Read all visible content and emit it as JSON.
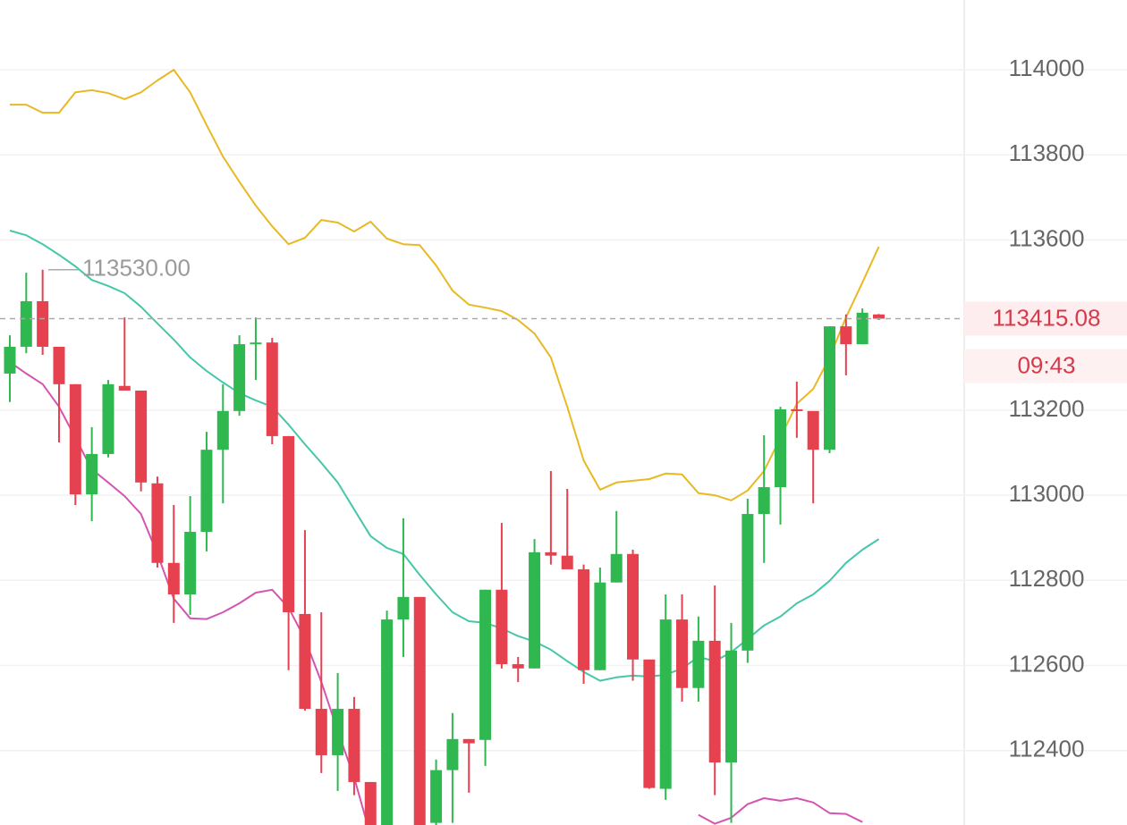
{
  "chart_data": {
    "type": "candlestick",
    "ylim": [
      112225,
      114164
    ],
    "yticks": [
      112400,
      112600,
      112800,
      113000,
      113200,
      113600,
      113800,
      114000
    ],
    "grid": true,
    "up_color": "#2eb84f",
    "down_color": "#e5414f",
    "open": [
      113286,
      113349,
      113456,
      113349,
      113261,
      113002,
      113097,
      113257,
      113246,
      113028,
      112841,
      112767,
      112914,
      113107,
      113198,
      113355,
      113359,
      113139,
      112721,
      112498,
      112389,
      112498,
      112326,
      112200,
      112708,
      112761,
      112230,
      112354,
      112427,
      112425,
      112778,
      112603,
      112593,
      112866,
      112858,
      112826,
      112589,
      112795,
      112862,
      112614,
      112310,
      112708,
      112547,
      112658,
      112372,
      112635,
      112956,
      113019,
      113202,
      113198,
      113107,
      113397,
      113355,
      113425
    ],
    "high": [
      113376,
      113523,
      113530,
      113349,
      113261,
      113160,
      113271,
      113418,
      113246,
      113044,
      112977,
      112998,
      113149,
      113261,
      113376,
      113418,
      113370,
      113139,
      112918,
      112725,
      112582,
      112526,
      112326,
      112729,
      112946,
      112761,
      112379,
      112488,
      112427,
      112778,
      112935,
      112620,
      112897,
      113057,
      113015,
      112837,
      112830,
      112963,
      112872,
      112614,
      112767,
      112767,
      112715,
      112788,
      112700,
      112992,
      113141,
      113208,
      113267,
      113198,
      113397,
      113425,
      113439,
      113426
    ],
    "low": [
      113219,
      113334,
      113330,
      113124,
      112977,
      112939,
      113089,
      113246,
      113009,
      112830,
      112700,
      112719,
      112868,
      112981,
      113187,
      113271,
      113120,
      112589,
      112494,
      112347,
      112305,
      112295,
      112180,
      112180,
      112620,
      112200,
      112225,
      112230,
      112301,
      112364,
      112593,
      112561,
      112593,
      112837,
      112826,
      112557,
      112589,
      112795,
      112564,
      112310,
      112284,
      112515,
      112515,
      112295,
      112230,
      112606,
      112841,
      112931,
      113135,
      112981,
      113099,
      113282,
      113355,
      113412
    ],
    "close": [
      113349,
      113456,
      113349,
      113261,
      113002,
      113097,
      113261,
      113246,
      113030,
      112841,
      112767,
      112914,
      113107,
      113198,
      113355,
      113359,
      113139,
      112725,
      112498,
      112389,
      112498,
      112326,
      112200,
      112708,
      112761,
      112210,
      112354,
      112427,
      112417,
      112778,
      112603,
      112593,
      112866,
      112858,
      112826,
      112589,
      112795,
      112862,
      112614,
      112312,
      112708,
      112547,
      112658,
      112372,
      112635,
      112956,
      113019,
      113202,
      113198,
      113107,
      113397,
      113355,
      113429,
      113415.08
    ],
    "series": [
      {
        "color": "#e8b923",
        "values": [
          113918,
          113918,
          113899,
          113899,
          113947,
          113952,
          113945,
          113931,
          113947,
          113975,
          114000,
          113947,
          113870,
          113796,
          113737,
          113681,
          113632,
          113590,
          113605,
          113647,
          113641,
          113620,
          113643,
          113603,
          113590,
          113588,
          113540,
          113481,
          113448,
          113441,
          113433,
          113412,
          113380,
          113324,
          113208,
          113082,
          113013,
          113030,
          113034,
          113038,
          113051,
          113049,
          113005,
          113000,
          112988,
          113011,
          113057,
          113135,
          113215,
          113250,
          113324,
          113418,
          113500,
          113584
        ]
      },
      {
        "color": "#45c7a9",
        "values": [
          113622,
          113611,
          113590,
          113565,
          113538,
          113506,
          113492,
          113475,
          113443,
          113404,
          113366,
          113324,
          113292,
          113265,
          113240,
          113223,
          113208,
          113166,
          113120,
          113076,
          113030,
          112967,
          112904,
          112876,
          112862,
          112813,
          112767,
          112725,
          112704,
          112700,
          112687,
          112669,
          112656,
          112637,
          112610,
          112585,
          112564,
          112572,
          112576,
          112574,
          112578,
          112593,
          112620,
          112610,
          112631,
          112662,
          112694,
          112715,
          112746,
          112767,
          112799,
          112841,
          112872,
          112897
        ]
      },
      {
        "color": "#d455b1",
        "values": [
          113313,
          113286,
          113261,
          113208,
          113135,
          113061,
          113030,
          112998,
          112956,
          112862,
          112757,
          112711,
          112709,
          112725,
          112746,
          112771,
          112778,
          112736,
          112662,
          112561,
          112446,
          112337,
          112200,
          null,
          null,
          null,
          null,
          null,
          null,
          null,
          null,
          null,
          null,
          null,
          null,
          null,
          null,
          null,
          null,
          null,
          null,
          null,
          112249,
          112228,
          112242,
          112274,
          112288,
          112282,
          112288,
          112278,
          112253,
          112251,
          112232,
          null
        ]
      }
    ],
    "high_annotation": {
      "value": 113530,
      "label": "113530.00"
    },
    "last_price": 113415.08,
    "countdown": "09:43"
  }
}
